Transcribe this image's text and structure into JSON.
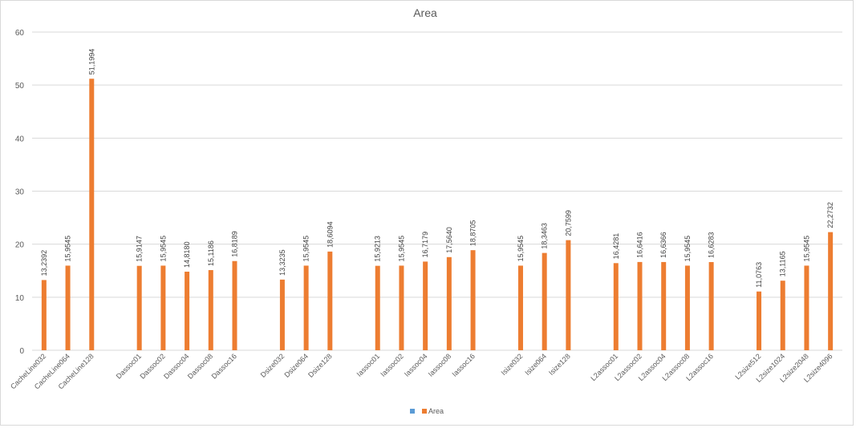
{
  "chart_data": {
    "type": "bar",
    "title": "Area",
    "xlabel": "",
    "ylabel": "",
    "ylim": [
      0,
      60
    ],
    "yticks": [
      "0",
      "10",
      "20",
      "30",
      "40",
      "50",
      "60"
    ],
    "grid": true,
    "legend_position": "bottom",
    "legend_entries": [
      "",
      "Area"
    ],
    "colors": {
      "legend_marker_1": "#5b9bd5",
      "series": "#ed7d31",
      "grid": "#d9d9d9",
      "text": "#595959"
    },
    "categories": [
      "CacheLine032",
      "CacheLine064",
      "CacheLine128",
      "",
      "Dassoc01",
      "Dassoc02",
      "Dassoc04",
      "Dassoc08",
      "Dassoc16",
      "",
      "Dsize032",
      "Dsize064",
      "Dsize128",
      "",
      "Iassoc01",
      "Iassoc02",
      "Iassoc04",
      "Iassoc08",
      "Iassoc16",
      "",
      "Isize032",
      "Isize064",
      "Isize128",
      "",
      "L2assoc01",
      "L2assoc02",
      "L2assoc04",
      "L2assoc08",
      "L2assoc16",
      "",
      "L2size512",
      "L2size1024",
      "L2size2048",
      "L2size4096"
    ],
    "series": [
      {
        "name": "Area",
        "values": [
          13.2392,
          15.9545,
          51.1994,
          null,
          15.9147,
          15.9545,
          14.818,
          15.1186,
          16.8189,
          null,
          13.3235,
          15.9545,
          18.6094,
          null,
          15.9213,
          15.9545,
          16.7179,
          17.564,
          18.8705,
          null,
          15.9545,
          18.3463,
          20.7599,
          null,
          16.4281,
          16.6416,
          16.6366,
          15.9545,
          16.6283,
          null,
          11.0763,
          13.1165,
          15.9545,
          22.2732
        ],
        "labels": [
          "13,2392",
          "15,9545",
          "51,1994",
          "",
          "15,9147",
          "15,9545",
          "14,8180",
          "15,1186",
          "16,8189",
          "",
          "13,3235",
          "15,9545",
          "18,6094",
          "",
          "15,9213",
          "15,9545",
          "16,7179",
          "17,5640",
          "18,8705",
          "",
          "15,9545",
          "18,3463",
          "20,7599",
          "",
          "16,4281",
          "16,6416",
          "16,6366",
          "15,9545",
          "16,6283",
          "",
          "11,0763",
          "13,1165",
          "15,9545",
          "22,2732"
        ]
      }
    ]
  }
}
